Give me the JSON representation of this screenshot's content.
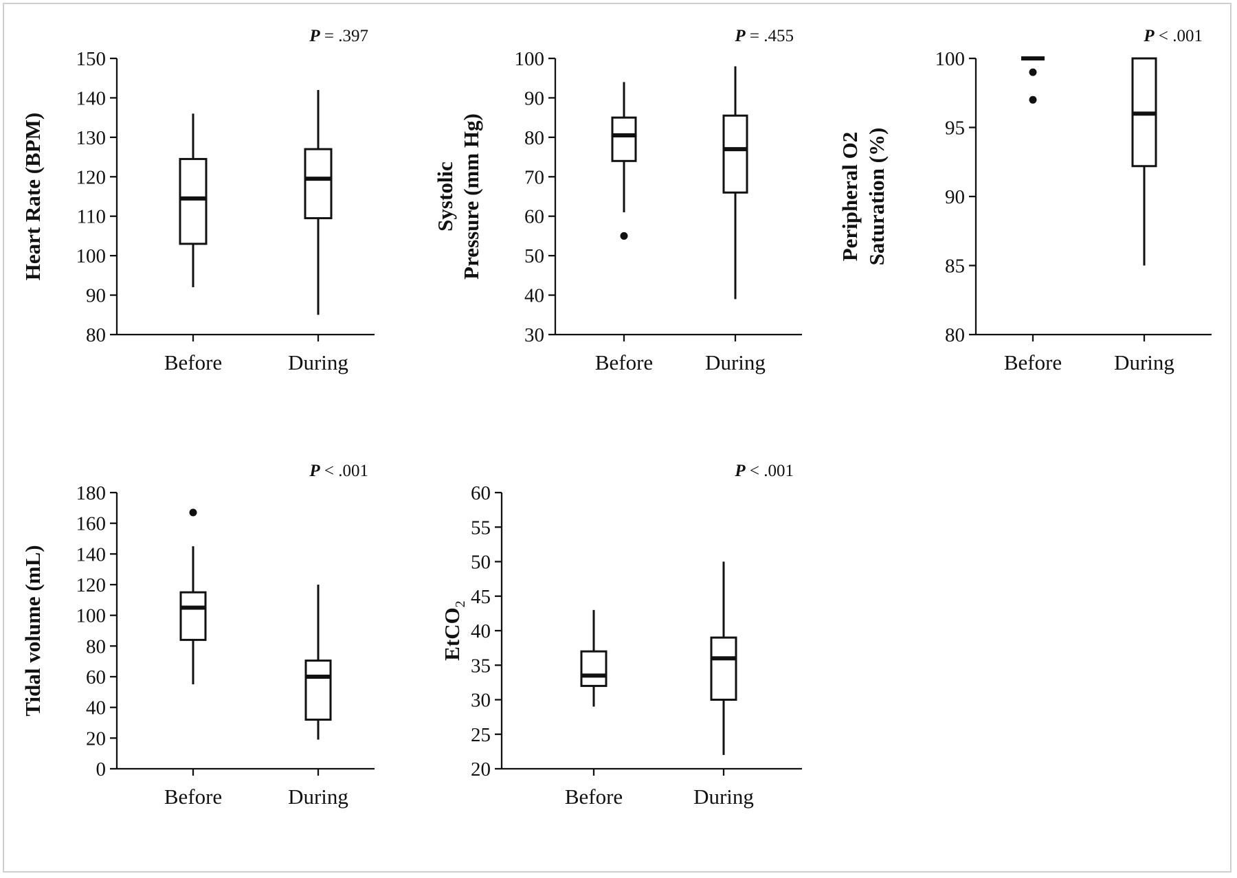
{
  "chart_data": [
    {
      "type": "box",
      "ylabel_lines": [
        "Heart Rate (BPM)"
      ],
      "ylim": [
        80,
        150
      ],
      "yticks": [
        80,
        90,
        100,
        110,
        120,
        130,
        140,
        150
      ],
      "categories": [
        "Before",
        "During"
      ],
      "p_label": "P",
      "p_value": " = .397",
      "boxes": [
        {
          "category": "Before",
          "min": 92,
          "q1": 103,
          "median": 114.5,
          "q3": 124.5,
          "max": 136,
          "outliers": []
        },
        {
          "category": "During",
          "min": 85,
          "q1": 109.5,
          "median": 119.5,
          "q3": 127,
          "max": 142,
          "outliers": []
        }
      ]
    },
    {
      "type": "box",
      "ylabel_lines": [
        "Systolic",
        "Pressure (mm Hg)"
      ],
      "ylim": [
        30,
        100
      ],
      "yticks": [
        30,
        40,
        50,
        60,
        70,
        80,
        90,
        100
      ],
      "categories": [
        "Before",
        "During"
      ],
      "p_label": "P",
      "p_value": " = .455",
      "boxes": [
        {
          "category": "Before",
          "min": 61,
          "q1": 74,
          "median": 80.5,
          "q3": 85,
          "max": 94,
          "outliers": [
            55
          ]
        },
        {
          "category": "During",
          "min": 39,
          "q1": 66,
          "median": 77,
          "q3": 85.5,
          "max": 98,
          "outliers": []
        }
      ]
    },
    {
      "type": "box",
      "ylabel_lines": [
        "Peripheral O2",
        "Saturation (%)"
      ],
      "ylim": [
        80,
        100
      ],
      "yticks": [
        80,
        85,
        90,
        95,
        100
      ],
      "categories": [
        "Before",
        "During"
      ],
      "p_label": "P",
      "p_value": " < .001",
      "boxes": [
        {
          "category": "Before",
          "min": 100,
          "q1": 100,
          "median": 100,
          "q3": 100,
          "max": 100,
          "outliers": [
            99,
            97
          ]
        },
        {
          "category": "During",
          "min": 85,
          "q1": 92.2,
          "median": 96,
          "q3": 100,
          "max": 100,
          "outliers": []
        }
      ]
    },
    {
      "type": "box",
      "ylabel_lines": [
        "Tidal volume (mL)"
      ],
      "ylim": [
        0,
        180
      ],
      "yticks": [
        0,
        20,
        40,
        60,
        80,
        100,
        120,
        140,
        160,
        180
      ],
      "categories": [
        "Before",
        "During"
      ],
      "p_label": "P",
      "p_value": " < .001",
      "boxes": [
        {
          "category": "Before",
          "min": 55,
          "q1": 84,
          "median": 105,
          "q3": 115,
          "max": 145,
          "outliers": [
            167
          ]
        },
        {
          "category": "During",
          "min": 19,
          "q1": 32,
          "median": 60,
          "q3": 70.5,
          "max": 120,
          "outliers": []
        }
      ]
    },
    {
      "type": "box",
      "ylabel_lines": [
        "EtCO2"
      ],
      "ylabel_main": "EtCO",
      "ylabel_sub": "2",
      "ylim": [
        20,
        60
      ],
      "yticks": [
        20,
        25,
        30,
        35,
        40,
        45,
        50,
        55,
        60
      ],
      "categories": [
        "Before",
        "During"
      ],
      "p_label": "P",
      "p_value": " < .001",
      "boxes": [
        {
          "category": "Before",
          "min": 29,
          "q1": 32,
          "median": 33.5,
          "q3": 37,
          "max": 43,
          "outliers": []
        },
        {
          "category": "During",
          "min": 22,
          "q1": 30,
          "median": 36,
          "q3": 39,
          "max": 50,
          "outliers": []
        }
      ]
    }
  ]
}
